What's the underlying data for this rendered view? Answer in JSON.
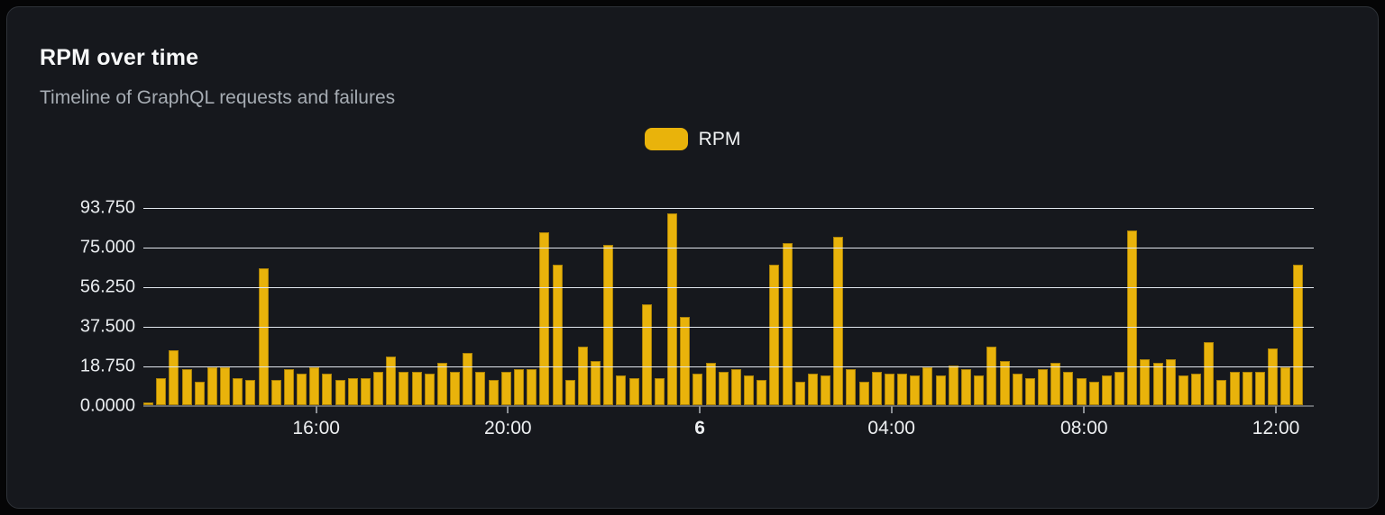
{
  "header": {
    "title": "RPM over time",
    "subtitle": "Timeline of GraphQL requests and failures"
  },
  "legend": {
    "items": [
      {
        "label": "RPM",
        "color": "#E9B30B"
      }
    ]
  },
  "colors": {
    "card_background": "#16181D",
    "card_border": "#2E3238",
    "page_background": "#050506",
    "bar": "#E9B30B",
    "gridline": "#E2E7EE",
    "axis_line": "#64676C",
    "title_text": "#F7F8F9",
    "subtitle_text": "#A6ACB3",
    "axis_label_text": "#E9ECEF"
  },
  "chart_data": {
    "type": "bar",
    "title": "RPM over time",
    "subtitle": "Timeline of GraphQL requests and failures",
    "xlabel": "",
    "ylabel": "",
    "ylim": [
      0,
      93.75
    ],
    "grid": true,
    "legend_position": "top-center",
    "bar_color": "#E9B30B",
    "y_ticks_desc": [
      "93.750",
      "75.000",
      "56.250",
      "37.500",
      "18.750",
      "0.0000"
    ],
    "x_ticks": [
      {
        "label": "16:00",
        "pos": 14.77,
        "bold": false
      },
      {
        "label": "20:00",
        "pos": 31.15,
        "bold": false
      },
      {
        "label": "6",
        "pos": 47.54,
        "bold": true
      },
      {
        "label": "04:00",
        "pos": 63.92,
        "bold": false
      },
      {
        "label": "08:00",
        "pos": 80.38,
        "bold": false
      },
      {
        "label": "12:00",
        "pos": 96.77,
        "bold": false
      }
    ],
    "series": [
      {
        "name": "RPM",
        "values": [
          1.5,
          13,
          26,
          17,
          11,
          18,
          18,
          13,
          12,
          65,
          12,
          17,
          15,
          18,
          15,
          12,
          13,
          13,
          16,
          23,
          16,
          16,
          15,
          20,
          16,
          25,
          16,
          12,
          16,
          17,
          17,
          82,
          67,
          12,
          28,
          21,
          76,
          14,
          13,
          48,
          13,
          91,
          42,
          15,
          20,
          16,
          17,
          14,
          12,
          67,
          77,
          11,
          15,
          14,
          80,
          17,
          11,
          16,
          15,
          15,
          14,
          18,
          14,
          19,
          17,
          14,
          28,
          21,
          15,
          13,
          17,
          20,
          16,
          13,
          11,
          14,
          16,
          83,
          22,
          20,
          22,
          14,
          15,
          30,
          12,
          16,
          16,
          16,
          27,
          18,
          67
        ]
      }
    ]
  }
}
